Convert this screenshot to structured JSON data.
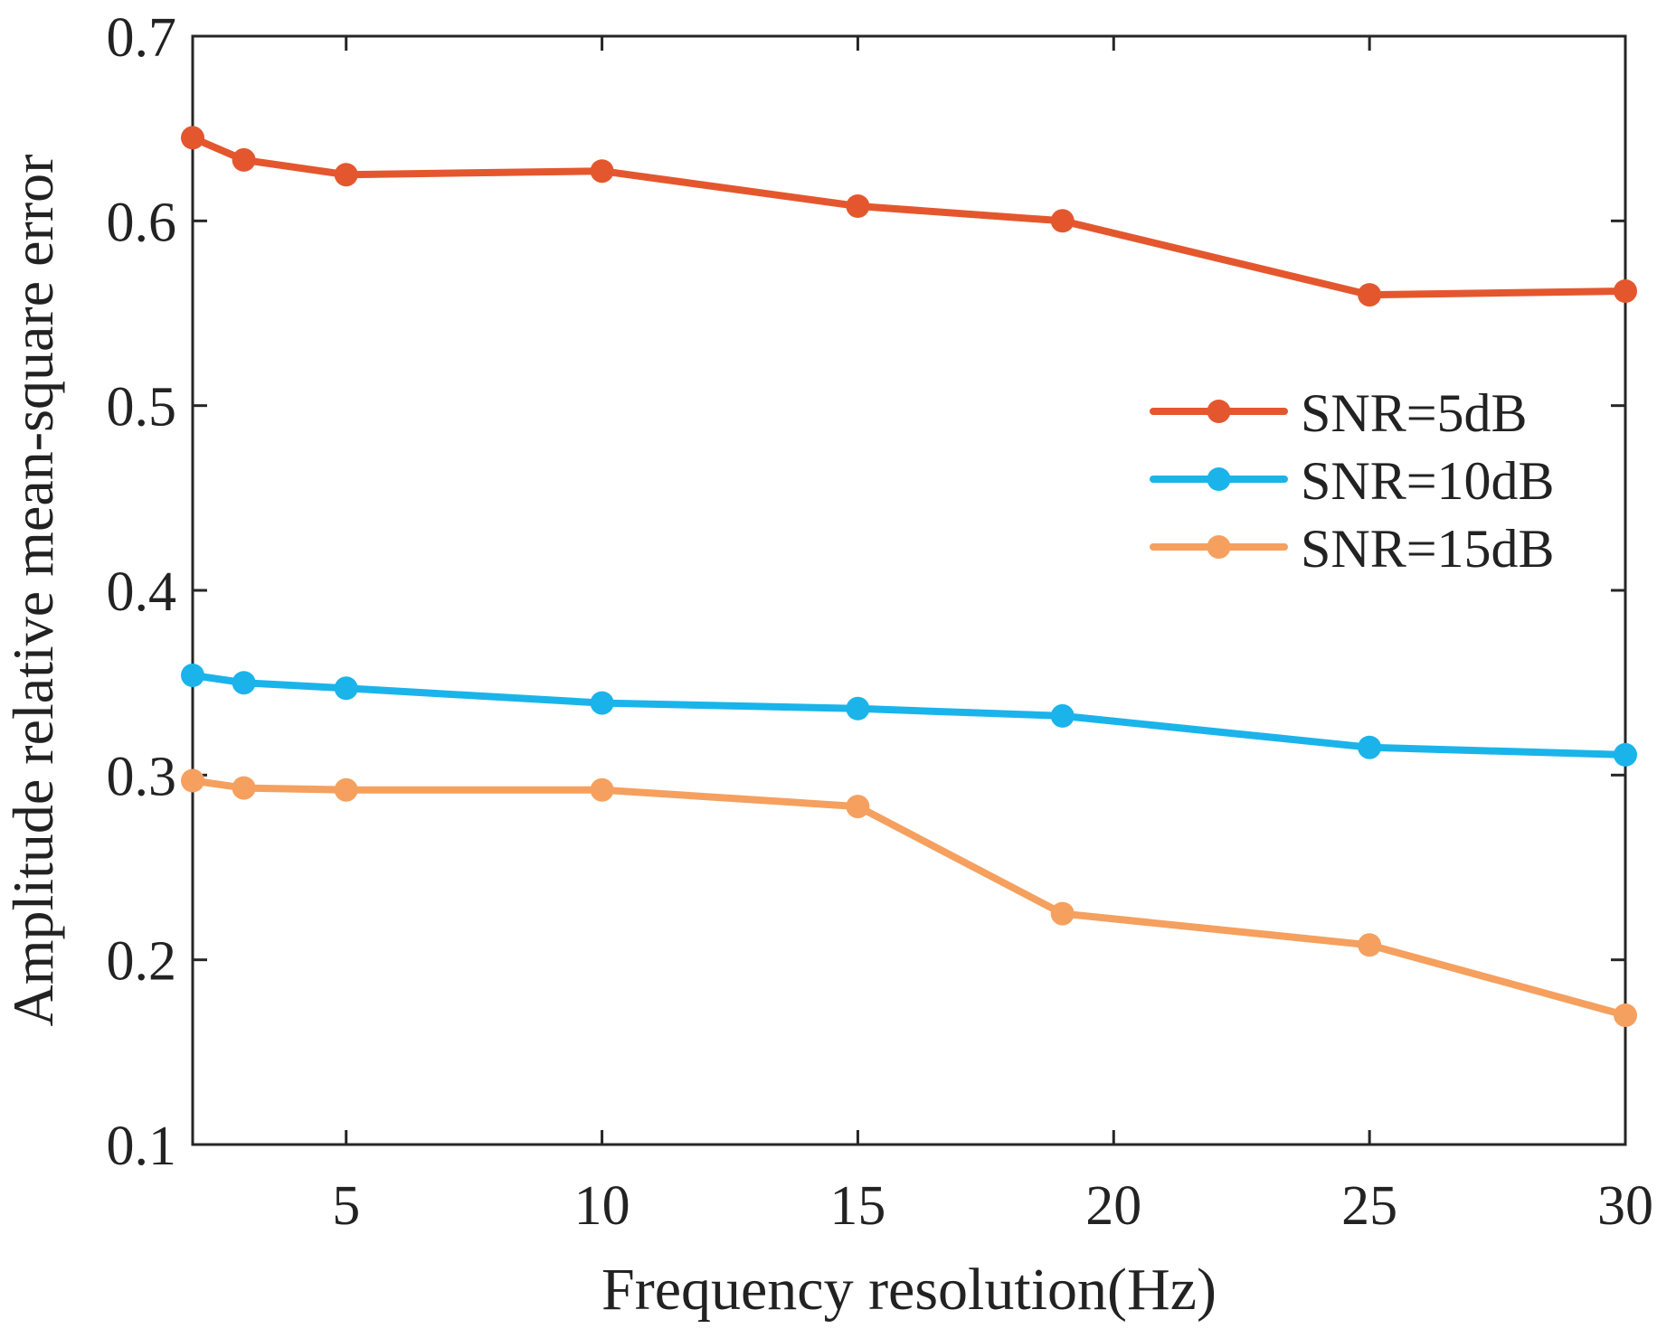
{
  "chart_data": {
    "type": "line",
    "title": "",
    "xlabel": "Frequency resolution(Hz)",
    "ylabel": "Amplitude relative mean-square error",
    "xlim": [
      2,
      30
    ],
    "ylim": [
      0.1,
      0.7
    ],
    "xticks": [
      5,
      10,
      15,
      20,
      25,
      30
    ],
    "xtick_labels": [
      "5",
      "10",
      "15",
      "20",
      "25",
      "30"
    ],
    "yticks": [
      0.1,
      0.2,
      0.3,
      0.4,
      0.5,
      0.6,
      0.7
    ],
    "ytick_labels": [
      "0.1",
      "0.2",
      "0.3",
      "0.4",
      "0.5",
      "0.6",
      "0.7"
    ],
    "grid": false,
    "legend_position": "center-right",
    "x": [
      2,
      3,
      5,
      10,
      15,
      19,
      25,
      30
    ],
    "series": [
      {
        "name": "SNR=5dB",
        "color": "#e4572e",
        "values": [
          0.645,
          0.633,
          0.625,
          0.627,
          0.608,
          0.6,
          0.56,
          0.562
        ]
      },
      {
        "name": "SNR=10dB",
        "color": "#1ab4ea",
        "values": [
          0.354,
          0.35,
          0.347,
          0.339,
          0.336,
          0.332,
          0.315,
          0.311
        ]
      },
      {
        "name": "SNR=15dB",
        "color": "#f5a05f",
        "values": [
          0.297,
          0.293,
          0.292,
          0.292,
          0.283,
          0.225,
          0.208,
          0.17
        ]
      }
    ]
  }
}
